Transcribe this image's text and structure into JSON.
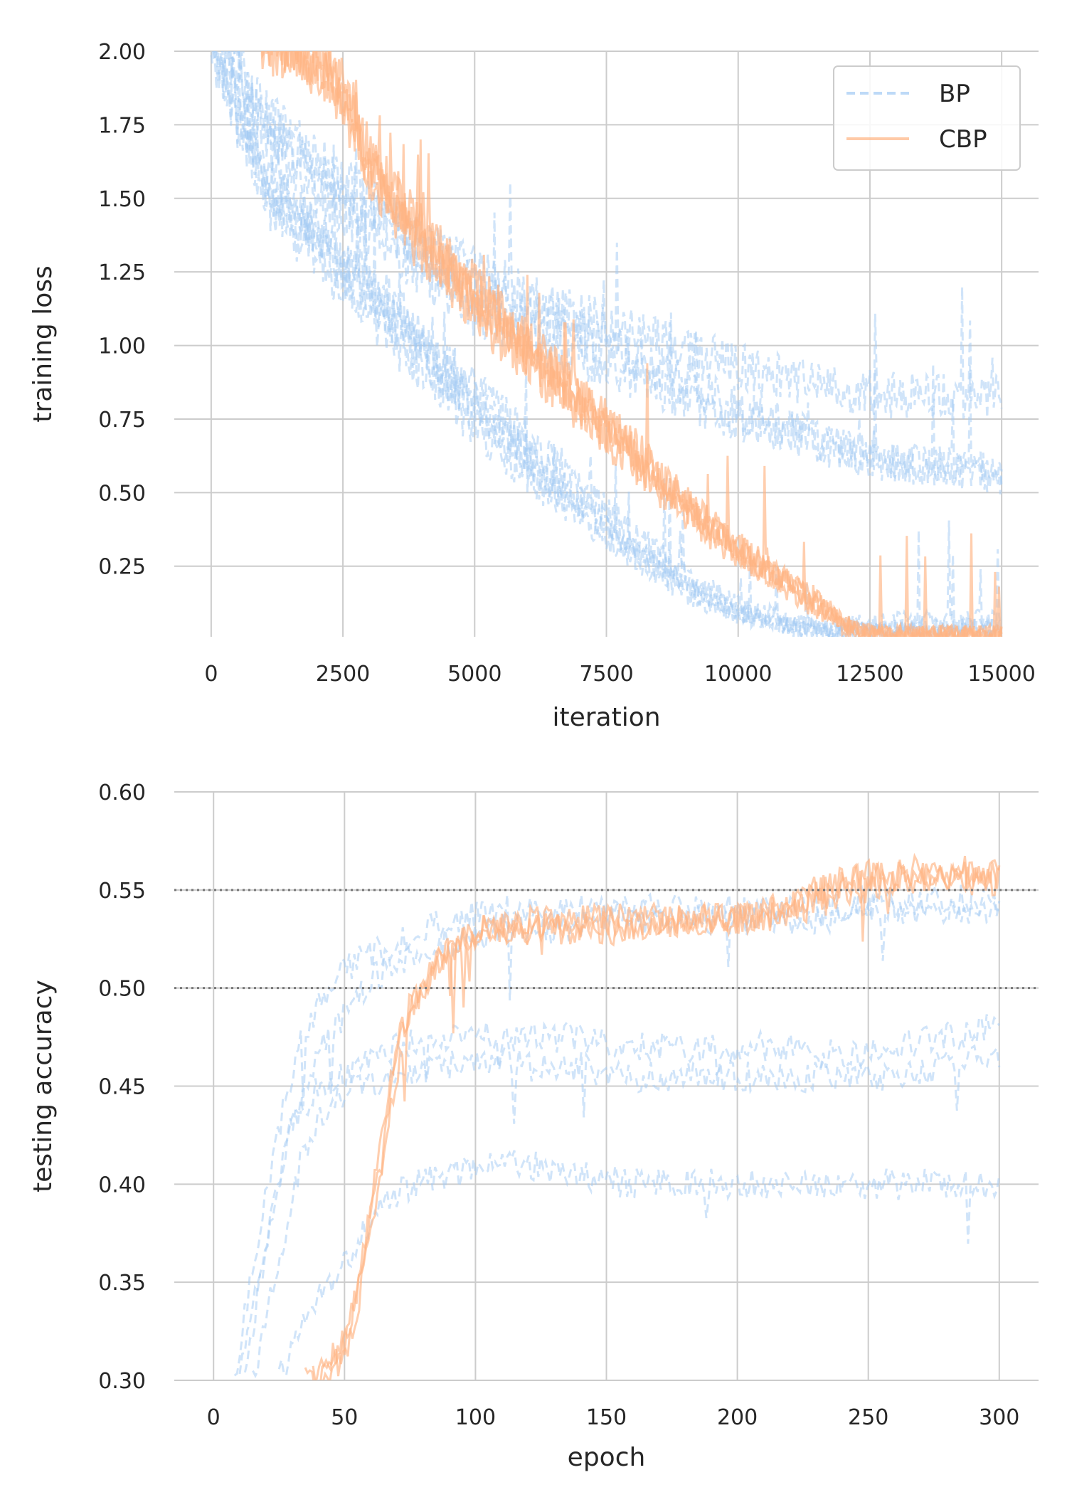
{
  "chart_data": [
    {
      "type": "line",
      "xlabel": "iteration",
      "ylabel": "training loss",
      "xlim": [
        -700,
        15700
      ],
      "ylim": [
        0.01,
        2.0
      ],
      "xticks": [
        0,
        2500,
        5000,
        7500,
        10000,
        12500,
        15000
      ],
      "xtick_labels": [
        "0",
        "2500",
        "5000",
        "7500",
        "10000",
        "12500",
        "15000"
      ],
      "yticks": [
        0.25,
        0.5,
        0.75,
        1.0,
        1.25,
        1.5,
        1.75,
        2.0
      ],
      "ytick_labels": [
        "0.25",
        "0.50",
        "0.75",
        "1.00",
        "1.25",
        "1.50",
        "1.75",
        "2.00"
      ],
      "grid": true,
      "legend": {
        "position": "top-right",
        "entries": [
          {
            "label": "BP",
            "style": "dashed",
            "color": "#a1c9f4"
          },
          {
            "label": "CBP",
            "style": "solid",
            "color": "#ffb482"
          }
        ]
      },
      "series": [
        {
          "group": "BP",
          "x": [
            0,
            1000,
            2500,
            4000,
            5000,
            6500,
            8000,
            9000,
            10000,
            11000,
            12000,
            13000,
            15000
          ],
          "values": [
            2.2,
            1.8,
            1.55,
            1.35,
            1.25,
            1.12,
            1.05,
            0.98,
            0.92,
            0.88,
            0.85,
            0.83,
            0.82
          ]
        },
        {
          "group": "BP",
          "x": [
            0,
            1000,
            2500,
            4000,
            5000,
            6500,
            8000,
            9000,
            10000,
            11000,
            12000,
            13000,
            15000
          ],
          "values": [
            2.2,
            1.7,
            1.45,
            1.25,
            1.12,
            1.0,
            0.9,
            0.82,
            0.75,
            0.7,
            0.62,
            0.6,
            0.58
          ]
        },
        {
          "group": "BP",
          "x": [
            0,
            1000,
            2500,
            4000,
            5000,
            6500,
            8000,
            9000,
            10000,
            11000,
            12000,
            13000,
            15000
          ],
          "values": [
            2.1,
            1.75,
            1.5,
            1.32,
            1.2,
            1.08,
            0.95,
            0.88,
            0.78,
            0.72,
            0.65,
            0.6,
            0.55
          ]
        },
        {
          "group": "BP",
          "x": [
            0,
            1000,
            2500,
            4000,
            5000,
            6500,
            8000,
            9000,
            10000,
            11000,
            11800,
            12500,
            15000
          ],
          "values": [
            2.0,
            1.55,
            1.25,
            0.98,
            0.8,
            0.55,
            0.32,
            0.2,
            0.1,
            0.05,
            0.03,
            0.03,
            0.03
          ]
        },
        {
          "group": "BP",
          "x": [
            0,
            1000,
            2500,
            4000,
            5000,
            6500,
            8000,
            9000,
            10000,
            11000,
            11800,
            12500,
            15000
          ],
          "values": [
            2.1,
            1.6,
            1.3,
            1.05,
            0.85,
            0.6,
            0.36,
            0.22,
            0.12,
            0.06,
            0.04,
            0.06,
            0.07
          ]
        },
        {
          "group": "BP",
          "x": [
            0,
            1000,
            2500,
            4000,
            5000,
            6500,
            8000,
            9000,
            10000,
            11000,
            11800,
            12500,
            15000
          ],
          "values": [
            2.0,
            1.5,
            1.2,
            0.92,
            0.72,
            0.48,
            0.28,
            0.16,
            0.08,
            0.04,
            0.02,
            0.02,
            0.02
          ]
        },
        {
          "group": "BP",
          "x": [
            0,
            1000,
            2500,
            4000,
            5000,
            6500,
            8000,
            9000,
            10000,
            11000,
            11800,
            12500,
            15000
          ],
          "values": [
            2.05,
            1.58,
            1.28,
            1.0,
            0.78,
            0.52,
            0.3,
            0.18,
            0.09,
            0.05,
            0.03,
            0.04,
            0.05
          ]
        },
        {
          "group": "CBP",
          "x": [
            0,
            1000,
            2000,
            2500,
            3000,
            4000,
            5000,
            6000,
            7000,
            8000,
            9000,
            10000,
            11000,
            11500,
            12000,
            12500,
            13000,
            15000
          ],
          "values": [
            2.3,
            2.05,
            1.95,
            1.85,
            1.6,
            1.35,
            1.15,
            0.98,
            0.8,
            0.62,
            0.45,
            0.3,
            0.18,
            0.12,
            0.05,
            0.02,
            0.02,
            0.02
          ]
        },
        {
          "group": "CBP",
          "x": [
            0,
            1000,
            2000,
            2500,
            3000,
            4000,
            5000,
            6000,
            7000,
            8000,
            9000,
            10000,
            11000,
            11500,
            12000,
            12500,
            13000,
            15000
          ],
          "values": [
            2.3,
            2.08,
            1.98,
            1.9,
            1.65,
            1.4,
            1.2,
            1.02,
            0.84,
            0.66,
            0.48,
            0.32,
            0.2,
            0.14,
            0.06,
            0.03,
            0.02,
            0.02
          ]
        },
        {
          "group": "CBP",
          "x": [
            0,
            1000,
            2000,
            2500,
            3000,
            4000,
            5000,
            6000,
            7000,
            8000,
            9000,
            10000,
            11000,
            11500,
            12000,
            12500,
            13000,
            15000
          ],
          "values": [
            2.3,
            2.02,
            1.92,
            1.82,
            1.58,
            1.32,
            1.12,
            0.95,
            0.77,
            0.6,
            0.42,
            0.28,
            0.16,
            0.1,
            0.04,
            0.02,
            0.02,
            0.02
          ]
        },
        {
          "group": "CBP",
          "x": [
            0,
            1000,
            2000,
            2500,
            3000,
            4000,
            5000,
            6000,
            7000,
            8000,
            9000,
            10000,
            11000,
            11500,
            12000,
            12500,
            13000,
            15000
          ],
          "values": [
            2.3,
            2.06,
            1.96,
            1.87,
            1.62,
            1.38,
            1.18,
            1.0,
            0.82,
            0.64,
            0.47,
            0.31,
            0.19,
            0.13,
            0.05,
            0.02,
            0.02,
            0.02
          ]
        }
      ]
    },
    {
      "type": "line",
      "xlabel": "epoch",
      "ylabel": "testing accuracy",
      "xlim": [
        -15,
        315
      ],
      "ylim": [
        0.3,
        0.6
      ],
      "xticks": [
        0,
        50,
        100,
        150,
        200,
        250,
        300
      ],
      "xtick_labels": [
        "0",
        "50",
        "100",
        "150",
        "200",
        "250",
        "300"
      ],
      "yticks": [
        0.3,
        0.35,
        0.4,
        0.45,
        0.5,
        0.55,
        0.6
      ],
      "ytick_labels": [
        "0.30",
        "0.35",
        "0.40",
        "0.45",
        "0.50",
        "0.55",
        "0.60"
      ],
      "grid": true,
      "reference_lines": [
        0.5,
        0.55
      ],
      "series": [
        {
          "group": "BP",
          "x": [
            8,
            15,
            25,
            35,
            50,
            65,
            80,
            95,
            110,
            130,
            150,
            170,
            190,
            210,
            230,
            250,
            270,
            300
          ],
          "values": [
            0.3,
            0.36,
            0.43,
            0.48,
            0.51,
            0.52,
            0.53,
            0.535,
            0.54,
            0.54,
            0.54,
            0.54,
            0.54,
            0.54,
            0.54,
            0.545,
            0.545,
            0.545
          ]
        },
        {
          "group": "BP",
          "x": [
            10,
            18,
            28,
            38,
            50,
            65,
            80,
            95,
            110,
            130,
            150,
            170,
            190,
            210,
            230,
            250,
            270,
            300
          ],
          "values": [
            0.3,
            0.36,
            0.42,
            0.46,
            0.49,
            0.51,
            0.52,
            0.525,
            0.53,
            0.53,
            0.535,
            0.535,
            0.535,
            0.535,
            0.535,
            0.54,
            0.54,
            0.54
          ]
        },
        {
          "group": "BP",
          "x": [
            12,
            20,
            30,
            40,
            55,
            70,
            85,
            100,
            120,
            140,
            160,
            180,
            200,
            220,
            240,
            260,
            280,
            300
          ],
          "values": [
            0.3,
            0.37,
            0.43,
            0.45,
            0.46,
            0.47,
            0.475,
            0.475,
            0.475,
            0.475,
            0.47,
            0.47,
            0.47,
            0.47,
            0.465,
            0.47,
            0.475,
            0.48
          ]
        },
        {
          "group": "BP",
          "x": [
            15,
            25,
            35,
            45,
            55,
            70,
            85,
            100,
            120,
            140,
            160,
            180,
            200,
            220,
            240,
            260,
            280,
            300
          ],
          "values": [
            0.3,
            0.36,
            0.42,
            0.44,
            0.45,
            0.455,
            0.46,
            0.465,
            0.46,
            0.46,
            0.455,
            0.455,
            0.455,
            0.455,
            0.455,
            0.455,
            0.46,
            0.465
          ]
        },
        {
          "group": "BP",
          "x": [
            25,
            35,
            45,
            55,
            65,
            75,
            90,
            105,
            120,
            140,
            160,
            180,
            200,
            220,
            240,
            260,
            280,
            300
          ],
          "values": [
            0.3,
            0.33,
            0.35,
            0.37,
            0.39,
            0.4,
            0.405,
            0.41,
            0.41,
            0.405,
            0.4,
            0.4,
            0.4,
            0.4,
            0.4,
            0.4,
            0.4,
            0.4
          ]
        },
        {
          "group": "CBP",
          "x": [
            35,
            45,
            50,
            55,
            60,
            65,
            70,
            75,
            80,
            90,
            100,
            120,
            150,
            180,
            200,
            220,
            230,
            240,
            260,
            280,
            300
          ],
          "values": [
            0.3,
            0.31,
            0.32,
            0.35,
            0.39,
            0.43,
            0.47,
            0.49,
            0.5,
            0.52,
            0.53,
            0.53,
            0.535,
            0.535,
            0.535,
            0.54,
            0.55,
            0.555,
            0.558,
            0.558,
            0.558
          ]
        },
        {
          "group": "CBP",
          "x": [
            38,
            48,
            52,
            57,
            62,
            67,
            72,
            77,
            82,
            92,
            102,
            122,
            152,
            182,
            202,
            222,
            232,
            242,
            262,
            282,
            300
          ],
          "values": [
            0.3,
            0.31,
            0.33,
            0.36,
            0.4,
            0.44,
            0.475,
            0.495,
            0.505,
            0.525,
            0.53,
            0.535,
            0.535,
            0.535,
            0.535,
            0.545,
            0.55,
            0.555,
            0.56,
            0.56,
            0.56
          ]
        },
        {
          "group": "CBP",
          "x": [
            40,
            50,
            54,
            59,
            64,
            69,
            74,
            79,
            84,
            94,
            104,
            124,
            154,
            184,
            204,
            224,
            234,
            244,
            264,
            284,
            300
          ],
          "values": [
            0.3,
            0.31,
            0.33,
            0.37,
            0.41,
            0.45,
            0.48,
            0.5,
            0.51,
            0.525,
            0.53,
            0.53,
            0.53,
            0.535,
            0.535,
            0.54,
            0.545,
            0.55,
            0.555,
            0.555,
            0.555
          ]
        }
      ]
    }
  ]
}
